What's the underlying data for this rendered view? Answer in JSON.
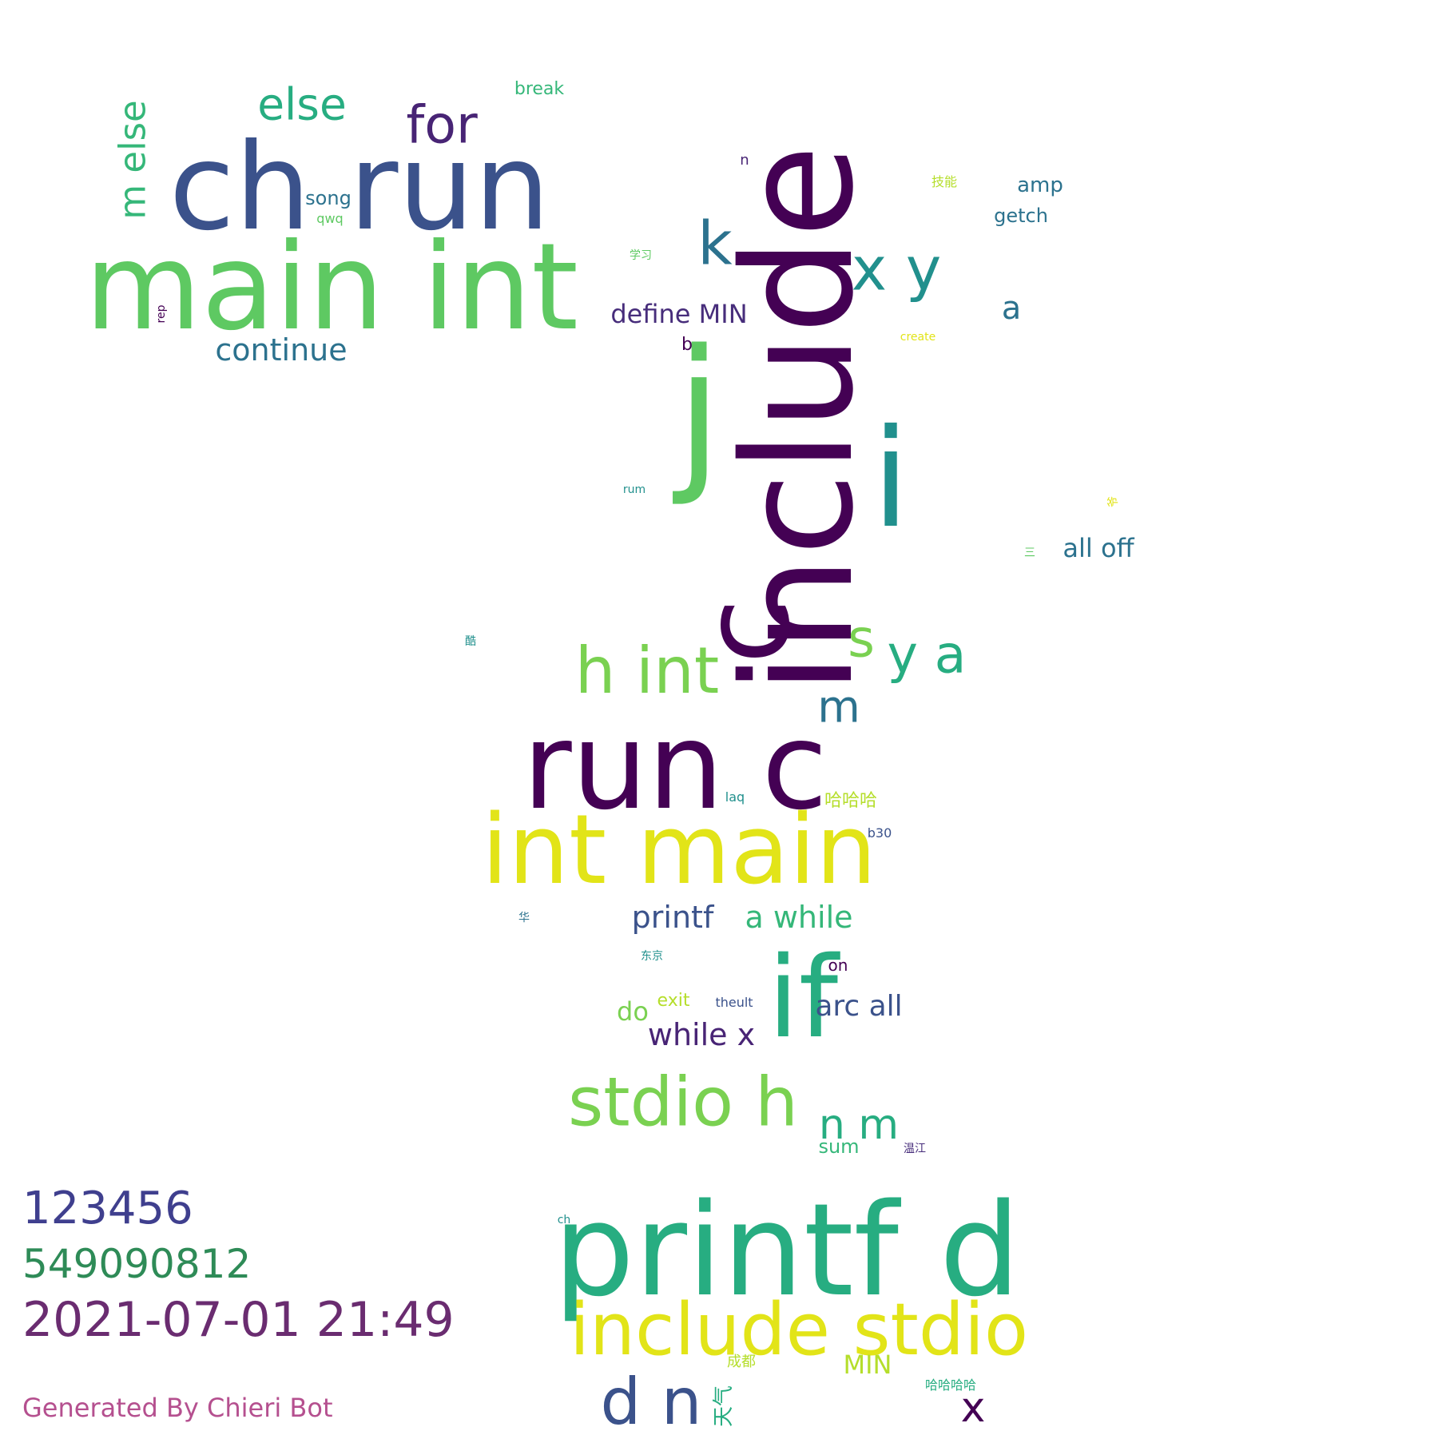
{
  "words": [
    {
      "text": "include",
      "color": "#440154",
      "vertical": true
    },
    {
      "text": "j",
      "color": "#5ec962"
    },
    {
      "text": "i",
      "color": "#21908d"
    },
    {
      "text": "ch run",
      "color": "#3b528b"
    },
    {
      "text": "main int",
      "color": "#5ec962"
    },
    {
      "text": "run c",
      "color": "#440154"
    },
    {
      "text": "c",
      "color": "#440154",
      "vertical": true
    },
    {
      "text": "int main",
      "color": "#e2e418"
    },
    {
      "text": "printf d",
      "color": "#27ad81"
    },
    {
      "text": "include stdio",
      "color": "#e2e418"
    },
    {
      "text": "if",
      "color": "#27ad81"
    },
    {
      "text": "stdio h",
      "color": "#7ad151"
    },
    {
      "text": "h int",
      "color": "#7ad151"
    },
    {
      "text": "d n",
      "color": "#3b528b"
    },
    {
      "text": "x y",
      "color": "#21908d"
    },
    {
      "text": "k",
      "color": "#2c728e"
    },
    {
      "text": "else",
      "color": "#27ad81"
    },
    {
      "text": "for",
      "color": "#482475"
    },
    {
      "text": "m else",
      "color": "#35b779",
      "vertical": true
    },
    {
      "text": "s",
      "color": "#7ad151"
    },
    {
      "text": "y a",
      "color": "#27ad81"
    },
    {
      "text": "m",
      "color": "#2c728e"
    },
    {
      "text": "n m",
      "color": "#27ad81"
    },
    {
      "text": "x",
      "color": "#440154"
    },
    {
      "text": "continue",
      "color": "#2c728e"
    },
    {
      "text": "define MIN",
      "color": "#472d7b"
    },
    {
      "text": "printf",
      "color": "#3b528b"
    },
    {
      "text": "a while",
      "color": "#35b779"
    },
    {
      "text": "while x",
      "color": "#482475"
    },
    {
      "text": "arc all",
      "color": "#3b528b"
    },
    {
      "text": "all off",
      "color": "#2c728e"
    },
    {
      "text": "a",
      "color": "#2c728e"
    },
    {
      "text": "MIN",
      "color": "#b5de2b"
    },
    {
      "text": "do",
      "color": "#7ad151"
    },
    {
      "text": "amp",
      "color": "#2c728e"
    },
    {
      "text": "getch",
      "color": "#2c728e"
    },
    {
      "text": "song",
      "color": "#2c728e"
    },
    {
      "text": "break",
      "color": "#35b779"
    },
    {
      "text": "sum",
      "color": "#35b779"
    },
    {
      "text": "exit",
      "color": "#b5de2b"
    },
    {
      "text": "哈哈哈",
      "color": "#b5de2b",
      "cjk": true
    },
    {
      "text": "哈哈哈哈",
      "color": "#27ad81",
      "cjk": true
    },
    {
      "text": "成都",
      "color": "#b5de2b",
      "cjk": true
    },
    {
      "text": "天气",
      "color": "#27ad81",
      "vertical": true,
      "cjk": true
    },
    {
      "text": "b",
      "color": "#440154"
    },
    {
      "text": "n",
      "color": "#482475"
    },
    {
      "text": "on",
      "color": "#440154"
    },
    {
      "text": "theult",
      "color": "#3b528b"
    },
    {
      "text": "qwq",
      "color": "#5ec962"
    },
    {
      "text": "rep",
      "color": "#440154",
      "vertical": true
    },
    {
      "text": "laq",
      "color": "#21908d"
    },
    {
      "text": "b30",
      "color": "#3b528b"
    },
    {
      "text": "ch",
      "color": "#21908d"
    },
    {
      "text": "rum",
      "color": "#21908d"
    },
    {
      "text": "create",
      "color": "#e2e418"
    },
    {
      "text": "技能",
      "color": "#b5de2b",
      "cjk": true
    },
    {
      "text": "学习",
      "color": "#5ec962",
      "cjk": true
    },
    {
      "text": "酷",
      "color": "#21908d",
      "cjk": true
    },
    {
      "text": "华",
      "color": "#2c728e",
      "cjk": true
    },
    {
      "text": "东京",
      "color": "#21908d",
      "cjk": true
    },
    {
      "text": "温江",
      "color": "#472d7b",
      "cjk": true
    },
    {
      "text": "三",
      "color": "#5ec962",
      "cjk": true
    },
    {
      "text": "爷",
      "color": "#e2e418",
      "vertical": true,
      "cjk": true
    }
  ],
  "footer": {
    "qq": "123456",
    "qq_color": "#3f3f8e",
    "group": "549090812",
    "group_color": "#2e8b57",
    "time": "2021-07-01 21:49",
    "time_color": "#6a2c70",
    "generator": "Generated By Chieri Bot",
    "generator_color": "#b5508f"
  }
}
